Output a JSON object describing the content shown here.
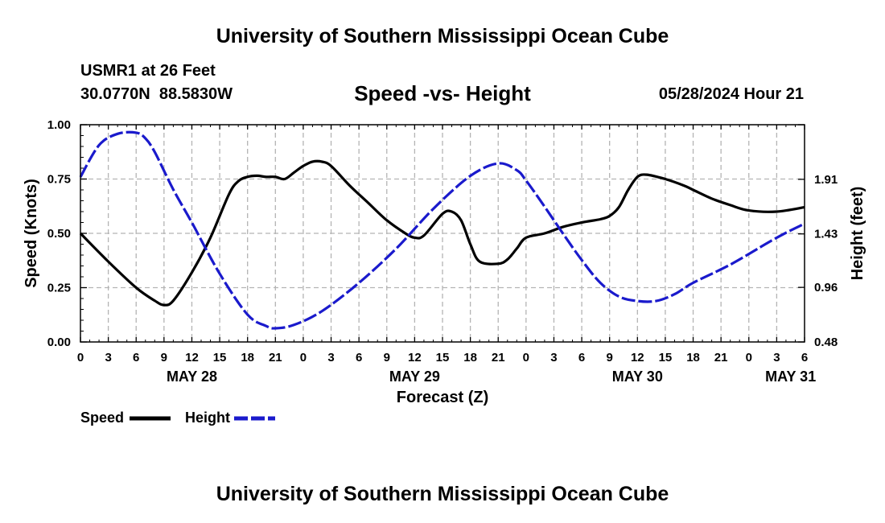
{
  "header": {
    "title": "University of Southern Mississippi Ocean Cube",
    "station": "USMR1 at 26 Feet",
    "coords": "30.0770N  88.5830W",
    "subtitle": "Speed -vs- Height",
    "datetime": "05/28/2024 Hour 21"
  },
  "footer": {
    "title": "University of Southern Mississippi Ocean Cube"
  },
  "chart_data": {
    "type": "line",
    "xlabel": "Forecast (Z)",
    "ylabel": "Speed (Knots)",
    "y2label": "Height (feet)",
    "xlim": [
      0,
      78
    ],
    "ylim": [
      0,
      1
    ],
    "y2lim": [
      0.48,
      2.39
    ],
    "x_ticks": [
      0,
      3,
      6,
      9,
      12,
      15,
      18,
      21,
      24,
      27,
      30,
      33,
      36,
      39,
      42,
      45,
      48,
      51,
      54,
      57,
      60,
      63,
      66,
      69,
      72,
      75,
      78
    ],
    "x_tick_labels": [
      "0",
      "3",
      "6",
      "9",
      "12",
      "15",
      "18",
      "21",
      "0",
      "3",
      "6",
      "9",
      "12",
      "15",
      "18",
      "21",
      "0",
      "3",
      "6",
      "9",
      "12",
      "15",
      "18",
      "21",
      "0",
      "3",
      "6"
    ],
    "date_labels": [
      {
        "x": 12,
        "label": "MAY 28"
      },
      {
        "x": 36,
        "label": "MAY 29"
      },
      {
        "x": 60,
        "label": "MAY 30"
      },
      {
        "x": 76.5,
        "label": "MAY 31"
      }
    ],
    "y_ticks": [
      0,
      0.25,
      0.5,
      0.75,
      1.0
    ],
    "y_tick_labels": [
      "0.00",
      "0.25",
      "0.50",
      "0.75",
      "1.00"
    ],
    "y2_ticks": [
      0.48,
      0.96,
      1.43,
      1.91
    ],
    "y2_tick_labels": [
      "0.48",
      "0.96",
      "1.43",
      "1.91"
    ],
    "grid": true,
    "series": [
      {
        "name": "Speed",
        "axis": "left",
        "color": "#000000",
        "dash": "solid",
        "x": [
          0,
          3,
          6,
          8,
          9,
          10,
          12,
          14,
          16,
          17,
          18,
          19,
          20,
          21,
          22,
          23,
          24,
          25,
          26,
          27,
          29,
          31,
          33,
          35,
          36,
          37,
          39,
          40,
          41,
          42,
          43,
          45,
          46,
          47,
          48,
          50,
          52,
          54,
          56,
          57,
          58,
          59,
          60,
          61,
          63,
          65,
          66,
          68,
          70,
          72,
          75,
          78
        ],
        "y": [
          0.5,
          0.37,
          0.25,
          0.19,
          0.17,
          0.19,
          0.32,
          0.48,
          0.68,
          0.74,
          0.76,
          0.765,
          0.76,
          0.76,
          0.75,
          0.78,
          0.81,
          0.83,
          0.83,
          0.81,
          0.72,
          0.64,
          0.56,
          0.5,
          0.48,
          0.49,
          0.59,
          0.6,
          0.56,
          0.45,
          0.37,
          0.36,
          0.38,
          0.43,
          0.48,
          0.5,
          0.53,
          0.55,
          0.565,
          0.58,
          0.62,
          0.7,
          0.76,
          0.77,
          0.75,
          0.72,
          0.7,
          0.66,
          0.63,
          0.605,
          0.6,
          0.62
        ]
      },
      {
        "name": "Height",
        "axis": "right",
        "color": "#1a1acc",
        "dash": "dashed",
        "x": [
          0,
          2,
          4,
          6,
          7,
          8,
          10,
          12,
          15,
          18,
          20,
          21,
          23,
          26,
          30,
          34,
          38,
          42,
          45,
          47,
          48,
          50,
          52,
          54,
          56,
          58,
          60,
          62,
          64,
          66,
          70,
          74,
          76,
          78
        ],
        "y": [
          1.93,
          2.21,
          2.31,
          2.32,
          2.27,
          2.15,
          1.82,
          1.53,
          1.08,
          0.72,
          0.62,
          0.6,
          0.63,
          0.75,
          1.0,
          1.3,
          1.65,
          1.94,
          2.05,
          1.99,
          1.9,
          1.67,
          1.43,
          1.2,
          1.0,
          0.88,
          0.84,
          0.84,
          0.9,
          1.0,
          1.16,
          1.35,
          1.44,
          1.52
        ]
      }
    ],
    "legend": [
      {
        "label": "Speed",
        "color": "#000000",
        "dash": "solid"
      },
      {
        "label": "Height",
        "color": "#1a1acc",
        "dash": "dashed"
      }
    ]
  }
}
